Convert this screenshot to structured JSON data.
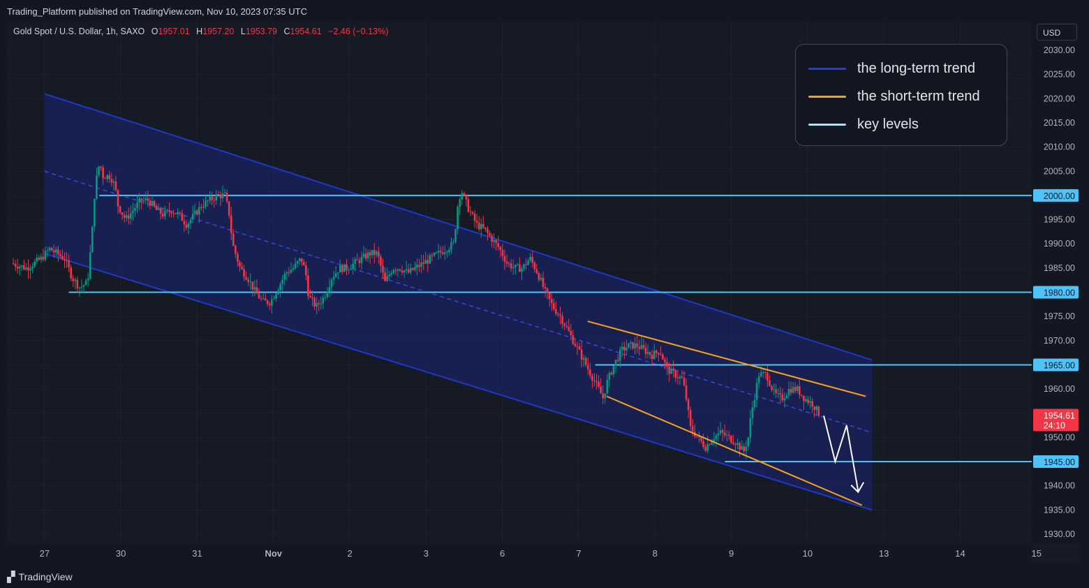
{
  "publisher_line": "Trading_Platform published on TradingView.com, Nov 10, 2023 07:35 UTC",
  "header": {
    "symbol": "Gold Spot / U.S. Dollar, 1h, SAXO",
    "o_label": "O",
    "o_value": "1957.01",
    "h_label": "H",
    "h_value": "1957.20",
    "l_label": "L",
    "l_value": "1953.79",
    "c_label": "C",
    "c_value": "1954.61",
    "change": "−2.46 (−0.13%)"
  },
  "currency_button": "USD",
  "legend": {
    "items": [
      {
        "label": "the long-term trend",
        "color": "#1f3fe0"
      },
      {
        "label": "the short-term trend",
        "color": "#f7a21b"
      },
      {
        "label": "key levels",
        "color": "#9fe6ff"
      }
    ]
  },
  "footer": {
    "logo_text": "TradingView"
  },
  "colors": {
    "up": "#089981",
    "down": "#f23645",
    "channel_fill": "#1a2360",
    "channel_line": "#1e38c8",
    "wedge": "#f7a21b",
    "key_level": "#4fc3f7",
    "projection": "#ffffff"
  },
  "chart_data": {
    "type": "candlestick",
    "title": "Gold Spot / U.S. Dollar, 1h, SAXO",
    "y_axis": {
      "min": 1928,
      "max": 2033,
      "ticks": [
        "2030.00",
        "2025.00",
        "2020.00",
        "2015.00",
        "2010.00",
        "2005.00",
        "2000.00",
        "1995.00",
        "1990.00",
        "1985.00",
        "1980.00",
        "1975.00",
        "1970.00",
        "1965.00",
        "1960.00",
        "1955.00",
        "1950.00",
        "1945.00",
        "1940.00",
        "1935.00",
        "1930.00"
      ]
    },
    "x_axis": {
      "ticks": [
        {
          "label": "27",
          "x_index": 2
        },
        {
          "label": "30",
          "x_index": 12
        },
        {
          "label": "31",
          "x_index": 22
        },
        {
          "label": "Nov",
          "x_index": 32
        },
        {
          "label": "2",
          "x_index": 42
        },
        {
          "label": "3",
          "x_index": 52
        },
        {
          "label": "6",
          "x_index": 62
        },
        {
          "label": "7",
          "x_index": 72
        },
        {
          "label": "8",
          "x_index": 82
        },
        {
          "label": "9",
          "x_index": 92
        },
        {
          "label": "10",
          "x_index": 102
        },
        {
          "label": "13",
          "x_index": 112
        },
        {
          "label": "14",
          "x_index": 122
        },
        {
          "label": "15",
          "x_index": 132
        }
      ],
      "bold_labels": [
        "Nov"
      ],
      "max_index": 135
    },
    "price_path": [
      [
        0,
        1986
      ],
      [
        2,
        1985
      ],
      [
        4,
        1987
      ],
      [
        5,
        1989
      ],
      [
        6,
        1988
      ],
      [
        7,
        1987
      ],
      [
        8,
        1983
      ],
      [
        9,
        1981
      ],
      [
        10,
        1982
      ],
      [
        10.6,
        1992
      ],
      [
        11,
        2002
      ],
      [
        11.6,
        2007
      ],
      [
        12,
        2004
      ],
      [
        13,
        2004
      ],
      [
        13.6,
        2002
      ],
      [
        14,
        1998
      ],
      [
        15,
        1995
      ],
      [
        16,
        1997
      ],
      [
        17,
        1999
      ],
      [
        18,
        1999
      ],
      [
        19,
        1997
      ],
      [
        20,
        1996
      ],
      [
        21,
        1997
      ],
      [
        22,
        1996
      ],
      [
        23,
        1994
      ],
      [
        24,
        1996
      ],
      [
        25,
        1998
      ],
      [
        26,
        1999
      ],
      [
        27,
        2000
      ],
      [
        28,
        2000
      ],
      [
        28.6,
        1996
      ],
      [
        29,
        1990
      ],
      [
        30,
        1985
      ],
      [
        31,
        1983
      ],
      [
        32,
        1980
      ],
      [
        33,
        1978
      ],
      [
        34,
        1978
      ],
      [
        35,
        1981
      ],
      [
        36,
        1984
      ],
      [
        37,
        1985
      ],
      [
        38,
        1987
      ],
      [
        38.6,
        1984
      ],
      [
        39,
        1979
      ],
      [
        40,
        1977
      ],
      [
        41,
        1979
      ],
      [
        42,
        1983
      ],
      [
        43,
        1985
      ],
      [
        44,
        1985
      ],
      [
        45,
        1986
      ],
      [
        46,
        1987
      ],
      [
        47,
        1988
      ],
      [
        48,
        1988
      ],
      [
        49,
        1982
      ],
      [
        50,
        1985
      ],
      [
        51,
        1985
      ],
      [
        52,
        1984
      ],
      [
        53,
        1985
      ],
      [
        54,
        1986
      ],
      [
        55,
        1987
      ],
      [
        56,
        1988
      ],
      [
        57,
        1989
      ],
      [
        58,
        1990
      ],
      [
        58.6,
        1999
      ],
      [
        59,
        2001
      ],
      [
        60,
        1997
      ],
      [
        61,
        1994
      ],
      [
        62,
        1993
      ],
      [
        63,
        1991
      ],
      [
        64,
        1989
      ],
      [
        65,
        1986
      ],
      [
        66,
        1985
      ],
      [
        67,
        1985
      ],
      [
        68,
        1987
      ],
      [
        69,
        1984
      ],
      [
        70,
        1980
      ],
      [
        71,
        1977
      ],
      [
        72,
        1975
      ],
      [
        73,
        1972
      ],
      [
        74,
        1969
      ],
      [
        75,
        1966
      ],
      [
        76,
        1963
      ],
      [
        77,
        1960
      ],
      [
        77.6,
        1958
      ],
      [
        78,
        1961
      ],
      [
        79,
        1965
      ],
      [
        80,
        1968
      ],
      [
        81,
        1969
      ],
      [
        82,
        1969
      ],
      [
        83,
        1968
      ],
      [
        84,
        1967
      ],
      [
        85,
        1968
      ],
      [
        86,
        1964
      ],
      [
        87,
        1963
      ],
      [
        88,
        1962
      ],
      [
        88.6,
        1957
      ],
      [
        89,
        1952
      ],
      [
        90,
        1950
      ],
      [
        91,
        1948
      ],
      [
        92,
        1950
      ],
      [
        93,
        1951
      ],
      [
        94,
        1950
      ],
      [
        95,
        1949
      ],
      [
        96,
        1947
      ],
      [
        96.6,
        1950
      ],
      [
        97,
        1955
      ],
      [
        98,
        1963
      ],
      [
        99,
        1963
      ],
      [
        100,
        1959
      ],
      [
        101,
        1958
      ],
      [
        102,
        1960
      ],
      [
        103,
        1960
      ],
      [
        104,
        1958
      ],
      [
        105,
        1957
      ],
      [
        106,
        1954.61
      ]
    ],
    "channel": {
      "start_index": 4,
      "end_index": 112,
      "upper": [
        2021,
        1966
      ],
      "lower": [
        1988,
        1935
      ],
      "mid": [
        2005,
        1951
      ]
    },
    "wedge": {
      "upper": {
        "start_index": 75,
        "end_index": 112,
        "values": [
          1974,
          1958.5
        ]
      },
      "lower": {
        "start_index": 77.5,
        "end_index": 111.5,
        "values": [
          1958.5,
          1936
        ]
      }
    },
    "key_levels": [
      {
        "value": 2000.0,
        "label": "2000.00",
        "start_index": 11
      },
      {
        "value": 1980.0,
        "label": "1980.00",
        "start_index": 7
      },
      {
        "value": 1965.0,
        "label": "1965.00",
        "start_index": 76
      },
      {
        "value": 1945.0,
        "label": "1945.00",
        "start_index": 93
      }
    ],
    "current_price": {
      "value": 1954.61,
      "label": "1954.61",
      "countdown": "24:10"
    },
    "projection_path": [
      [
        106.5,
        1954.5
      ],
      [
        108,
        1945
      ],
      [
        109.5,
        1952.5
      ],
      [
        111,
        1939
      ]
    ]
  }
}
